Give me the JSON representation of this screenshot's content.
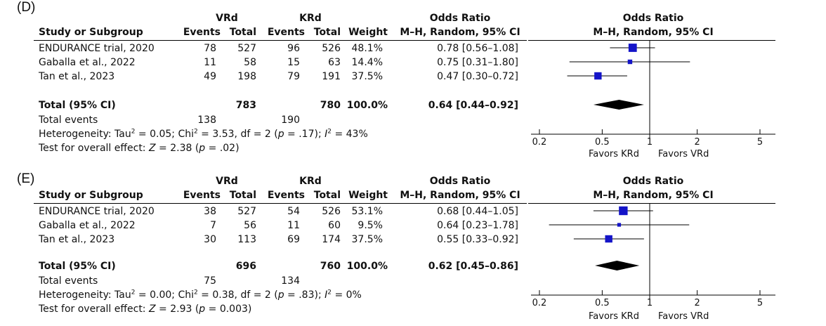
{
  "chart_data": [
    {
      "type": "forest",
      "panel_label": "(D)",
      "group_headers": {
        "experimental": "VRd",
        "control": "KRd"
      },
      "columns": {
        "study": "Study or Subgroup",
        "events": "Events",
        "total": "Total",
        "weight": "Weight",
        "effect_title": "Odds Ratio",
        "effect_method": "M–H, Random, 95% CI",
        "plot_title": "Odds Ratio",
        "plot_method": "M–H, Random, 95% CI"
      },
      "studies": [
        {
          "name": "ENDURANCE trial, 2020",
          "exp_events": "78",
          "exp_total": "527",
          "ctl_events": "96",
          "ctl_total": "526",
          "weight": "48.1%",
          "ci_text": "0.78 [0.56–1.08]",
          "or": 0.78,
          "lower": 0.56,
          "upper": 1.08,
          "w": 48.1
        },
        {
          "name": "Gaballa et al., 2022",
          "exp_events": "11",
          "exp_total": "58",
          "ctl_events": "15",
          "ctl_total": "63",
          "weight": "14.4%",
          "ci_text": "0.75 [0.31–1.80]",
          "or": 0.75,
          "lower": 0.31,
          "upper": 1.8,
          "w": 14.4
        },
        {
          "name": "Tan et al., 2023",
          "exp_events": "49",
          "exp_total": "198",
          "ctl_events": "79",
          "ctl_total": "191",
          "weight": "37.5%",
          "ci_text": "0.47 [0.30–0.72]",
          "or": 0.47,
          "lower": 0.3,
          "upper": 0.72,
          "w": 37.5
        }
      ],
      "total": {
        "label": "Total (95% CI)",
        "exp_total": "783",
        "ctl_total": "780",
        "weight": "100.0%",
        "ci_text": "0.64 [0.44–0.92]",
        "or": 0.64,
        "lower": 0.44,
        "upper": 0.92
      },
      "total_events": {
        "label": "Total events",
        "exp": "138",
        "ctl": "190"
      },
      "heterogeneity": {
        "prefix": "Heterogeneity: Tau",
        "tau2": " = 0.05; Chi",
        "chi2": " = 3.53, df = 2 (",
        "p_label": "p",
        "p_val": " = .17); ",
        "i_label": "I",
        "i_val": " = 43%"
      },
      "overall": {
        "prefix": "Test for overall effect: ",
        "z_label": "Z",
        "z_val": " = 2.38 (",
        "p_label": "p",
        "p_val": " = .02)"
      },
      "axis": {
        "ticks": [
          0.2,
          0.5,
          1,
          2,
          5
        ],
        "tick_labels": [
          "0.2",
          "0.5",
          "1",
          "2",
          "5"
        ],
        "scale": "log",
        "range": [
          0.2,
          5
        ],
        "left_label": "Favors KRd",
        "right_label": "Favors VRd"
      }
    },
    {
      "type": "forest",
      "panel_label": "(E)",
      "group_headers": {
        "experimental": "VRd",
        "control": "KRd"
      },
      "columns": {
        "study": "Study or Subgroup",
        "events": "Events",
        "total": "Total",
        "weight": "Weight",
        "effect_title": "Odds Ratio",
        "effect_method": "M–H, Random, 95% CI",
        "plot_title": "Odds Ratio",
        "plot_method": "M–H, Random, 95% CI"
      },
      "studies": [
        {
          "name": "ENDURANCE trial, 2020",
          "exp_events": "38",
          "exp_total": "527",
          "ctl_events": "54",
          "ctl_total": "526",
          "weight": "53.1%",
          "ci_text": "0.68 [0.44–1.05]",
          "or": 0.68,
          "lower": 0.44,
          "upper": 1.05,
          "w": 53.1
        },
        {
          "name": "Gaballa et al., 2022",
          "exp_events": "7",
          "exp_total": "56",
          "ctl_events": "11",
          "ctl_total": "60",
          "weight": "9.5%",
          "ci_text": "0.64 [0.23–1.78]",
          "or": 0.64,
          "lower": 0.23,
          "upper": 1.78,
          "w": 9.5
        },
        {
          "name": "Tan et al., 2023",
          "exp_events": "30",
          "exp_total": "113",
          "ctl_events": "69",
          "ctl_total": "174",
          "weight": "37.5%",
          "ci_text": "0.55 [0.33–0.92]",
          "or": 0.55,
          "lower": 0.33,
          "upper": 0.92,
          "w": 37.5
        }
      ],
      "total": {
        "label": "Total (95% CI)",
        "exp_total": "696",
        "ctl_total": "760",
        "weight": "100.0%",
        "ci_text": "0.62 [0.45–0.86]",
        "or": 0.62,
        "lower": 0.45,
        "upper": 0.86
      },
      "total_events": {
        "label": "Total events",
        "exp": "75",
        "ctl": "134"
      },
      "heterogeneity": {
        "prefix": "Heterogeneity: Tau",
        "tau2": " = 0.00; Chi",
        "chi2": " = 0.38, df = 2 (",
        "p_label": "p",
        "p_val": " = .83); ",
        "i_label": "I",
        "i_val": " = 0%"
      },
      "overall": {
        "prefix": "Test for overall effect: ",
        "z_label": "Z",
        "z_val": " = 2.93 (",
        "p_label": "p",
        "p_val": " = 0.003)"
      },
      "axis": {
        "ticks": [
          0.2,
          0.5,
          1,
          2,
          5
        ],
        "tick_labels": [
          "0.2",
          "0.5",
          "1",
          "2",
          "5"
        ],
        "scale": "log",
        "range": [
          0.2,
          5
        ],
        "left_label": "Favors KRd",
        "right_label": "Favors VRd"
      }
    }
  ],
  "colors": {
    "study_marker": "#1414c8",
    "diamond": "#000000",
    "line": "#000000"
  }
}
